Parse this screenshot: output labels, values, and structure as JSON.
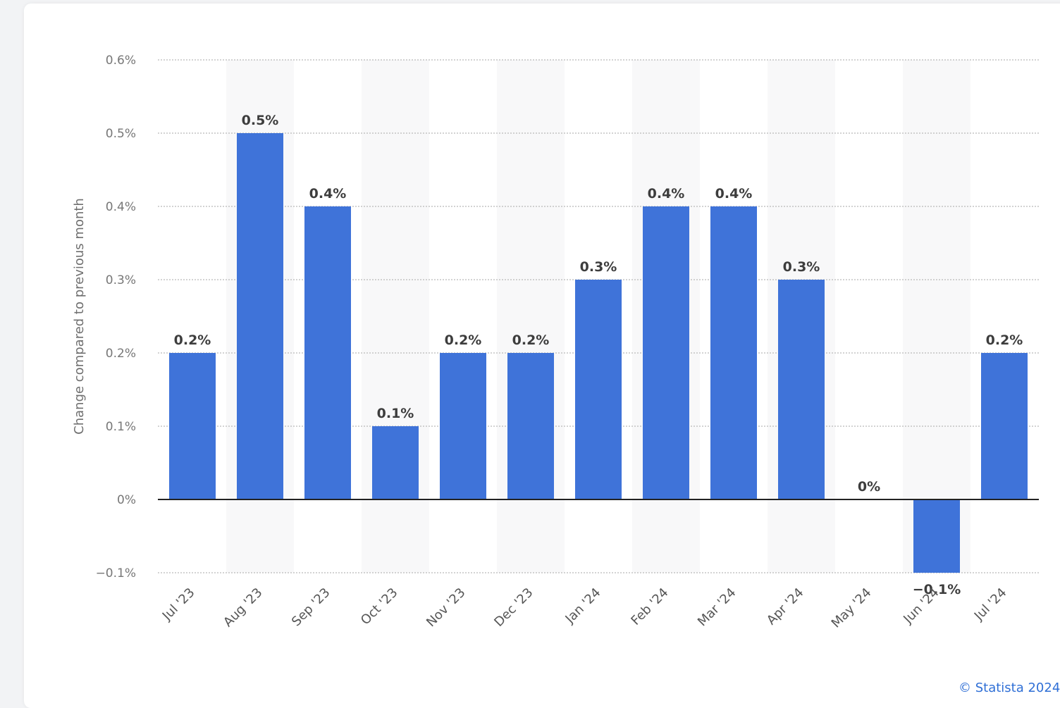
{
  "chart_data": {
    "type": "bar",
    "categories": [
      "Jul '23",
      "Aug '23",
      "Sep '23",
      "Oct '23",
      "Nov '23",
      "Dec '23",
      "Jan '24",
      "Feb '24",
      "Mar '24",
      "Apr '24",
      "May '24",
      "Jun '24",
      "Jul '24"
    ],
    "values": [
      0.2,
      0.5,
      0.4,
      0.1,
      0.2,
      0.2,
      0.3,
      0.4,
      0.4,
      0.3,
      0,
      -0.1,
      0.2
    ],
    "value_labels": [
      "0.2%",
      "0.5%",
      "0.4%",
      "0.1%",
      "0.2%",
      "0.2%",
      "0.3%",
      "0.4%",
      "0.4%",
      "0.3%",
      "0%",
      "−0.1%",
      "0.2%"
    ],
    "ylabel": "Change compared to previous month",
    "xlabel": "",
    "ylim": [
      -0.1,
      0.6
    ],
    "yticks": [
      0.6,
      0.5,
      0.4,
      0.3,
      0.2,
      0.1,
      0,
      -0.1
    ],
    "ytick_labels": [
      "0.6%",
      "0.5%",
      "0.4%",
      "0.3%",
      "0.2%",
      "0.1%",
      "0%",
      "−0.1%"
    ],
    "grid": true,
    "bar_color": "#3f73d9"
  },
  "credit": "© Statista 2024"
}
